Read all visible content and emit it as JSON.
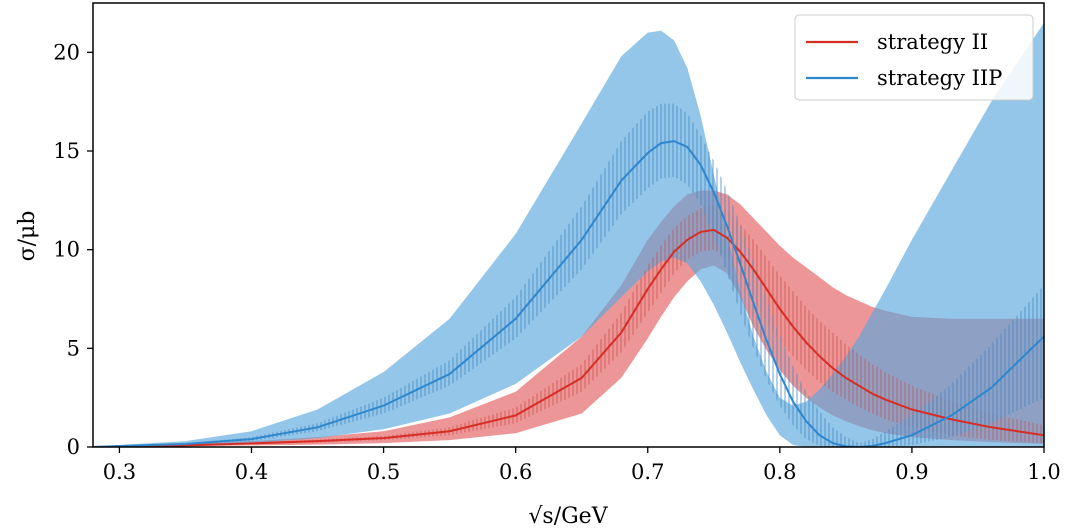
{
  "chart_data": {
    "type": "line",
    "xlabel": "√s/GeV",
    "ylabel": "σ/μb",
    "xlim": [
      0.28,
      1.0
    ],
    "ylim": [
      0,
      22.5
    ],
    "xticks": [
      "0.3",
      "0.4",
      "0.5",
      "0.6",
      "0.7",
      "0.8",
      "0.9",
      "1.0"
    ],
    "yticks": [
      "0",
      "5",
      "10",
      "15",
      "20"
    ],
    "legend_position": "top-right",
    "grid": false,
    "x": [
      0.28,
      0.3,
      0.35,
      0.4,
      0.45,
      0.5,
      0.55,
      0.6,
      0.65,
      0.68,
      0.7,
      0.71,
      0.72,
      0.73,
      0.74,
      0.75,
      0.76,
      0.77,
      0.78,
      0.79,
      0.8,
      0.81,
      0.82,
      0.83,
      0.84,
      0.85,
      0.86,
      0.87,
      0.88,
      0.9,
      0.93,
      0.96,
      1.0
    ],
    "series": [
      {
        "name": "strategy II",
        "color": "#d62d25",
        "values": [
          0.0,
          0.02,
          0.08,
          0.18,
          0.3,
          0.45,
          0.8,
          1.6,
          3.5,
          5.8,
          8.0,
          9.0,
          9.9,
          10.5,
          10.9,
          11.0,
          10.6,
          9.9,
          9.0,
          8.0,
          7.0,
          6.1,
          5.3,
          4.6,
          4.0,
          3.5,
          3.1,
          2.7,
          2.4,
          1.9,
          1.4,
          1.0,
          0.6
        ],
        "band_inner_lower": [
          0.0,
          0.02,
          0.06,
          0.14,
          0.22,
          0.35,
          0.6,
          1.2,
          2.8,
          4.8,
          6.8,
          7.8,
          8.8,
          9.5,
          9.9,
          10.0,
          9.6,
          8.6,
          7.5,
          6.4,
          5.4,
          4.6,
          3.9,
          3.3,
          2.8,
          2.4,
          2.0,
          1.7,
          1.4,
          1.0,
          0.6,
          0.35,
          0.2
        ],
        "band_inner_upper": [
          0.0,
          0.03,
          0.1,
          0.22,
          0.38,
          0.55,
          1.0,
          2.0,
          4.2,
          6.8,
          9.2,
          10.2,
          11.1,
          11.7,
          12.1,
          12.3,
          12.0,
          11.3,
          10.5,
          9.6,
          8.7,
          7.9,
          7.1,
          6.4,
          5.8,
          5.2,
          4.7,
          4.2,
          3.8,
          3.1,
          2.3,
          1.7,
          1.1
        ],
        "band_outer_lower": [
          0.0,
          0.01,
          0.04,
          0.08,
          0.12,
          0.2,
          0.35,
          0.7,
          1.7,
          3.5,
          5.5,
          6.6,
          7.6,
          8.4,
          9.0,
          9.2,
          8.8,
          7.6,
          6.1,
          4.9,
          3.9,
          3.1,
          2.5,
          2.0,
          1.6,
          1.3,
          1.05,
          0.85,
          0.7,
          0.5,
          0.35,
          0.25,
          0.15
        ],
        "band_outer_upper": [
          0.0,
          0.04,
          0.15,
          0.3,
          0.5,
          0.8,
          1.5,
          2.8,
          5.6,
          8.2,
          10.5,
          11.4,
          12.2,
          12.8,
          13.0,
          13.0,
          12.8,
          12.3,
          11.6,
          10.9,
          10.2,
          9.6,
          9.1,
          8.6,
          8.1,
          7.7,
          7.4,
          7.1,
          6.9,
          6.6,
          6.5,
          6.5,
          6.5
        ]
      },
      {
        "name": "strategy IIP",
        "color": "#2e87cc",
        "values": [
          0.0,
          0.05,
          0.15,
          0.4,
          1.0,
          2.1,
          3.7,
          6.5,
          10.5,
          13.5,
          14.9,
          15.4,
          15.5,
          15.2,
          14.3,
          12.9,
          11.2,
          9.3,
          7.3,
          5.4,
          3.7,
          2.3,
          1.3,
          0.6,
          0.2,
          0.03,
          0.0,
          0.05,
          0.2,
          0.6,
          1.6,
          3.0,
          5.6
        ],
        "band_inner_lower": [
          0.0,
          0.04,
          0.12,
          0.3,
          0.8,
          1.7,
          3.1,
          5.5,
          9.0,
          11.8,
          13.1,
          13.6,
          13.7,
          13.3,
          12.3,
          10.7,
          8.8,
          6.8,
          5.0,
          3.4,
          2.1,
          1.1,
          0.4,
          0.05,
          0.0,
          0.0,
          0.0,
          0.0,
          0.0,
          0.1,
          0.5,
          1.2,
          2.5
        ],
        "band_inner_upper": [
          0.0,
          0.06,
          0.18,
          0.5,
          1.2,
          2.5,
          4.4,
          7.6,
          12.2,
          15.5,
          17.0,
          17.4,
          17.4,
          16.9,
          15.8,
          14.5,
          13.0,
          11.3,
          9.4,
          7.5,
          5.7,
          4.1,
          2.8,
          1.8,
          1.0,
          0.5,
          0.2,
          0.4,
          0.8,
          1.6,
          3.2,
          5.2,
          8.2
        ],
        "band_outer_lower": [
          0.0,
          0.02,
          0.08,
          0.2,
          0.45,
          0.9,
          1.7,
          3.2,
          5.6,
          7.6,
          8.9,
          9.4,
          9.6,
          9.3,
          8.4,
          7.2,
          5.8,
          4.3,
          2.9,
          1.6,
          0.6,
          0.1,
          0.0,
          0.0,
          0.0,
          0.0,
          0.0,
          0.0,
          0.0,
          0.0,
          0.0,
          0.0,
          0.0
        ],
        "band_outer_upper": [
          0.0,
          0.1,
          0.3,
          0.8,
          1.9,
          3.8,
          6.5,
          10.8,
          16.4,
          19.8,
          21.0,
          21.1,
          20.6,
          19.2,
          16.8,
          13.8,
          10.8,
          7.9,
          5.6,
          3.8,
          2.5,
          2.1,
          2.3,
          2.9,
          3.7,
          4.6,
          5.6,
          6.8,
          8.0,
          10.5,
          14.0,
          17.5,
          21.5
        ]
      }
    ]
  }
}
